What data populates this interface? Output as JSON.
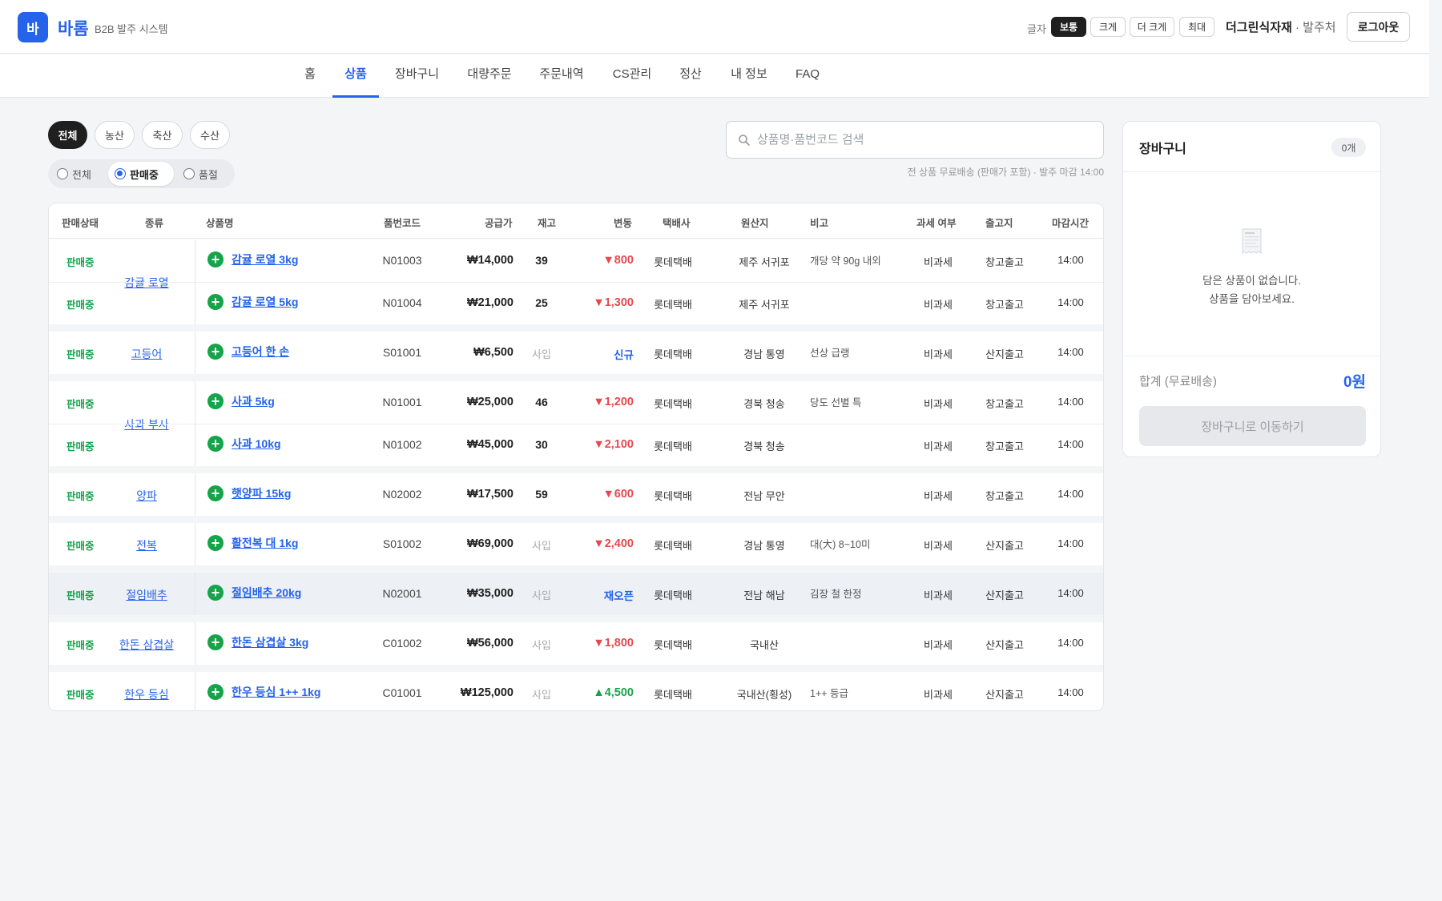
{
  "header": {
    "logo_text": "바",
    "brand": "바롬",
    "brand_sub": "B2B 발주 시스템",
    "font_label": "글자",
    "font_sizes": [
      "보통",
      "크게",
      "더 크게",
      "최대"
    ],
    "font_selected": "보통",
    "company": "더그린식자재",
    "company_role": " · 발주처",
    "logout": "로그아웃"
  },
  "nav": {
    "items": [
      "홈",
      "상품",
      "장바구니",
      "대량주문",
      "주문내역",
      "CS관리",
      "정산",
      "내 정보",
      "FAQ"
    ],
    "active": "상품"
  },
  "filters": {
    "categories": [
      "전체",
      "농산",
      "축산",
      "수산"
    ],
    "category_selected": "전체",
    "status_options": [
      "전체",
      "판매중",
      "품절"
    ],
    "status_selected": "판매중"
  },
  "search": {
    "placeholder": "상품명·품번코드 검색",
    "value": "",
    "note": "전 상품 무료배송 (판매가 포함) · 발주 마감 14:00"
  },
  "table": {
    "headers": [
      "판매상태",
      "종류",
      "상품명",
      "품번코드",
      "공급가",
      "재고",
      "변동",
      "택배사",
      "원산지",
      "비고",
      "과세 여부",
      "출고지",
      "마감시간"
    ],
    "groups": [
      {
        "category": "감귤 로열",
        "rows": [
          {
            "status": "판매중",
            "name": "감귤 로열 3kg",
            "code": "N01003",
            "price": "₩14,000",
            "stock": "39",
            "change": "▼800",
            "change_type": "down",
            "courier": "롯데택배",
            "origin": "제주 서귀포",
            "note": "개당 약 90g 내외",
            "tax": "비과세",
            "ship": "창고출고",
            "deadline": "14:00"
          },
          {
            "status": "판매중",
            "name": "감귤 로열 5kg",
            "code": "N01004",
            "price": "₩21,000",
            "stock": "25",
            "change": "▼1,300",
            "change_type": "down",
            "courier": "롯데택배",
            "origin": "제주 서귀포",
            "note": "",
            "tax": "비과세",
            "ship": "창고출고",
            "deadline": "14:00"
          }
        ]
      },
      {
        "category": "고등어",
        "rows": [
          {
            "status": "판매중",
            "name": "고등어 한 손",
            "code": "S01001",
            "price": "₩6,500",
            "stock": "사입",
            "change": "신규",
            "change_type": "txt",
            "courier": "롯데택배",
            "origin": "경남 통영",
            "note": "선상 급랭",
            "tax": "비과세",
            "ship": "산지출고",
            "deadline": "14:00"
          }
        ]
      },
      {
        "category": "사과 부사",
        "rows": [
          {
            "status": "판매중",
            "name": "사과 5kg",
            "code": "N01001",
            "price": "₩25,000",
            "stock": "46",
            "change": "▼1,200",
            "change_type": "down",
            "courier": "롯데택배",
            "origin": "경북 청송",
            "note": "당도 선별 특",
            "tax": "비과세",
            "ship": "창고출고",
            "deadline": "14:00"
          },
          {
            "status": "판매중",
            "name": "사과 10kg",
            "code": "N01002",
            "price": "₩45,000",
            "stock": "30",
            "change": "▼2,100",
            "change_type": "down",
            "courier": "롯데택배",
            "origin": "경북 청송",
            "note": "",
            "tax": "비과세",
            "ship": "창고출고",
            "deadline": "14:00"
          }
        ]
      },
      {
        "category": "양파",
        "rows": [
          {
            "status": "판매중",
            "name": "햇양파 15kg",
            "code": "N02002",
            "price": "₩17,500",
            "stock": "59",
            "change": "▼600",
            "change_type": "down",
            "courier": "롯데택배",
            "origin": "전남 무안",
            "note": "",
            "tax": "비과세",
            "ship": "창고출고",
            "deadline": "14:00"
          }
        ]
      },
      {
        "category": "전복",
        "rows": [
          {
            "status": "판매중",
            "name": "활전복 대 1kg",
            "code": "S01002",
            "price": "₩69,000",
            "stock": "사입",
            "change": "▼2,400",
            "change_type": "down",
            "courier": "롯데택배",
            "origin": "경남 통영",
            "note": "대(大) 8~10미",
            "tax": "비과세",
            "ship": "산지출고",
            "deadline": "14:00"
          }
        ]
      },
      {
        "category": "절임배추",
        "highlight": true,
        "rows": [
          {
            "status": "판매중",
            "name": "절임배추 20kg",
            "code": "N02001",
            "price": "₩35,000",
            "stock": "사입",
            "change": "재오픈",
            "change_type": "txt",
            "courier": "롯데택배",
            "origin": "전남 해남",
            "note": "김장 철 한정",
            "tax": "비과세",
            "ship": "산지출고",
            "deadline": "14:00"
          }
        ]
      },
      {
        "category": "한돈 삼겹살",
        "rows": [
          {
            "status": "판매중",
            "name": "한돈 삼겹살 3kg",
            "code": "C01002",
            "price": "₩56,000",
            "stock": "사입",
            "change": "▼1,800",
            "change_type": "down",
            "courier": "롯데택배",
            "origin": "국내산",
            "note": "",
            "tax": "비과세",
            "ship": "산지출고",
            "deadline": "14:00"
          }
        ]
      },
      {
        "category": "한우 등심",
        "rows": [
          {
            "status": "판매중",
            "name": "한우 등심 1++ 1kg",
            "code": "C01001",
            "price": "₩125,000",
            "stock": "사입",
            "change": "▲4,500",
            "change_type": "up",
            "courier": "롯데택배",
            "origin": "국내산(횡성)",
            "note": "1++ 등급",
            "tax": "비과세",
            "ship": "산지출고",
            "deadline": "14:00"
          }
        ]
      }
    ]
  },
  "cart": {
    "title": "장바구니",
    "count": "0개",
    "empty_line1": "담은 상품이 없습니다.",
    "empty_line2": "상품을 담아보세요.",
    "total_label": "합계 (무료배송)",
    "total_value": "0원",
    "go_button": "장바구니로 이동하기"
  },
  "colors": {
    "accent": "#2563eb",
    "status_green": "#16a34a",
    "down_red": "#e5484d",
    "highlight_row": "#edf1f6"
  }
}
